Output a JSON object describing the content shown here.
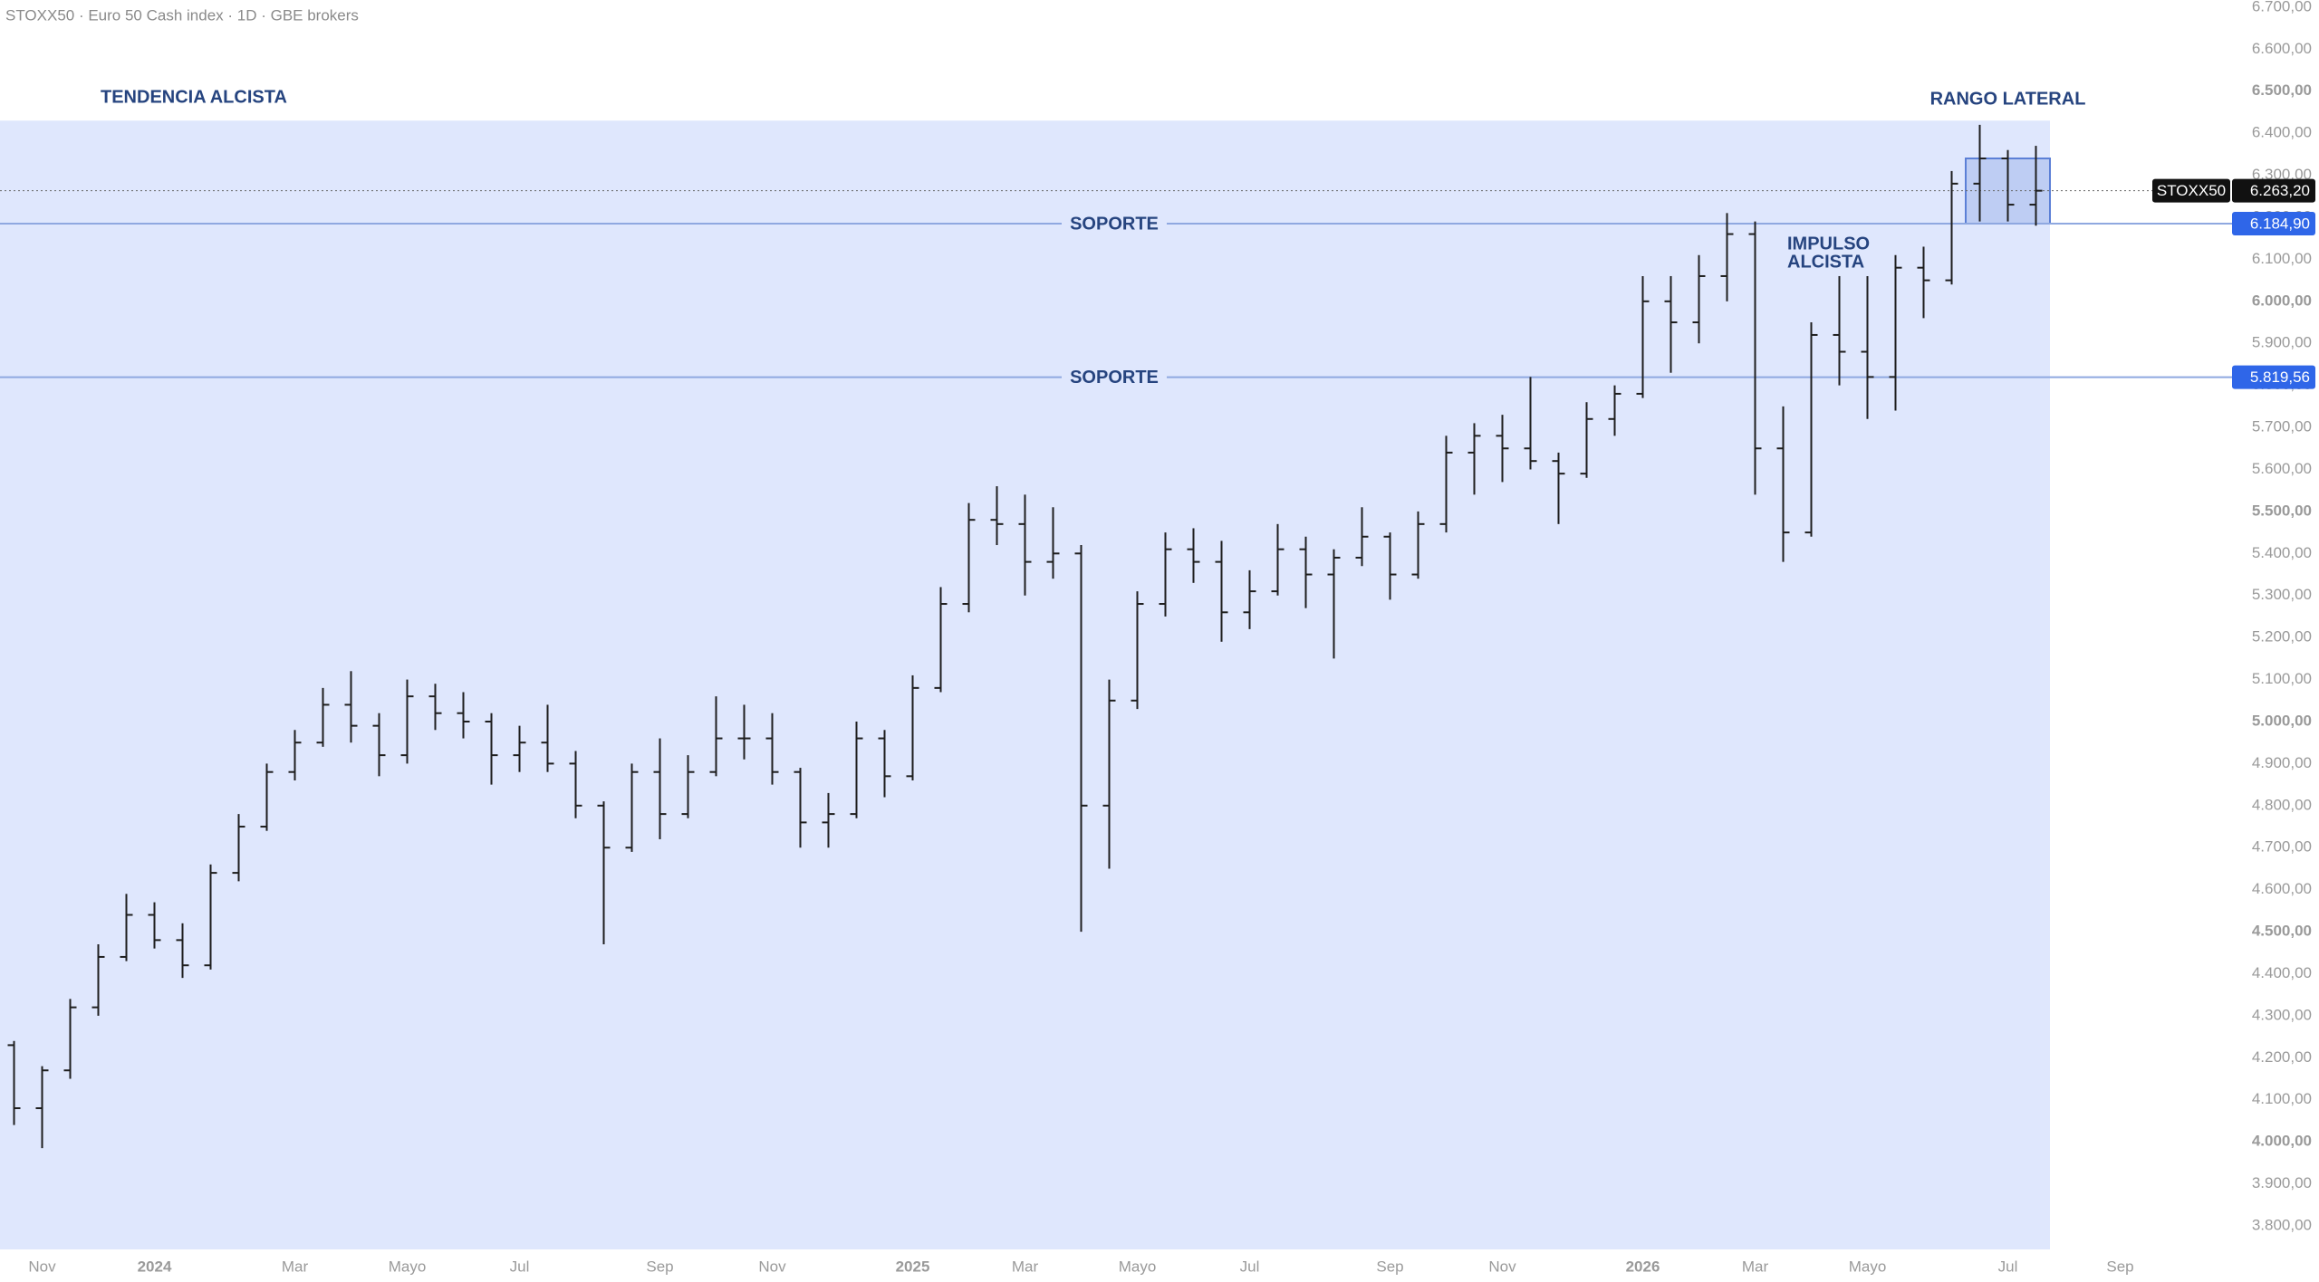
{
  "header": "STOXX50 · Euro 50 Cash index · 1D · GBE brokers",
  "chart_data": {
    "type": "ohlc",
    "categories": [
      null,
      "Nov",
      null,
      null,
      null,
      "2024",
      null,
      null,
      null,
      null,
      "Mar",
      null,
      null,
      null,
      "Mayo",
      null,
      null,
      null,
      "Jul",
      null,
      null,
      null,
      null,
      "Sep",
      null,
      null,
      null,
      "Nov",
      null,
      null,
      null,
      null,
      "2025",
      null,
      null,
      null,
      "Mar",
      null,
      null,
      null,
      "Mayo",
      null,
      null,
      null,
      "Jul",
      null,
      null,
      null,
      null,
      "Sep",
      null,
      null,
      null,
      "Nov",
      null,
      null,
      null,
      null,
      "2026",
      null,
      null,
      null,
      "Mar",
      null,
      null,
      null,
      "Mayo",
      null,
      null,
      null,
      null,
      "Jul",
      null,
      null,
      null,
      "Sep",
      null
    ],
    "ohlc": [
      [
        4230,
        4240,
        4040,
        4080
      ],
      [
        4080,
        4180,
        3985,
        4170
      ],
      [
        4170,
        4340,
        4150,
        4320
      ],
      [
        4320,
        4470,
        4300,
        4440
      ],
      [
        4440,
        4590,
        4430,
        4540
      ],
      [
        4540,
        4570,
        4460,
        4480
      ],
      [
        4480,
        4520,
        4390,
        4420
      ],
      [
        4420,
        4660,
        4410,
        4640
      ],
      [
        4640,
        4780,
        4620,
        4750
      ],
      [
        4750,
        4900,
        4740,
        4880
      ],
      [
        4880,
        4980,
        4860,
        4950
      ],
      [
        4950,
        5080,
        4940,
        5040
      ],
      [
        5040,
        5120,
        4950,
        4990
      ],
      [
        4990,
        5020,
        4870,
        4920
      ],
      [
        4920,
        5100,
        4900,
        5060
      ],
      [
        5060,
        5090,
        4980,
        5020
      ],
      [
        5020,
        5070,
        4960,
        5000
      ],
      [
        5000,
        5020,
        4850,
        4920
      ],
      [
        4920,
        4990,
        4880,
        4950
      ],
      [
        4950,
        5040,
        4880,
        4900
      ],
      [
        4900,
        4930,
        4770,
        4800
      ],
      [
        4800,
        4810,
        4470,
        4700
      ],
      [
        4700,
        4900,
        4690,
        4880
      ],
      [
        4880,
        4960,
        4720,
        4780
      ],
      [
        4780,
        4920,
        4770,
        4880
      ],
      [
        4880,
        5060,
        4870,
        4960
      ],
      [
        4960,
        5040,
        4910,
        4960
      ],
      [
        4960,
        5020,
        4850,
        4880
      ],
      [
        4880,
        4890,
        4700,
        4760
      ],
      [
        4760,
        4830,
        4700,
        4780
      ],
      [
        4780,
        5000,
        4770,
        4960
      ],
      [
        4960,
        4980,
        4820,
        4870
      ],
      [
        4870,
        5110,
        4860,
        5080
      ],
      [
        5080,
        5320,
        5070,
        5280
      ],
      [
        5280,
        5520,
        5260,
        5480
      ],
      [
        5480,
        5560,
        5420,
        5470
      ],
      [
        5470,
        5540,
        5300,
        5380
      ],
      [
        5380,
        5510,
        5340,
        5400
      ],
      [
        5400,
        5420,
        4500,
        4800
      ],
      [
        4800,
        5100,
        4650,
        5050
      ],
      [
        5050,
        5310,
        5030,
        5280
      ],
      [
        5280,
        5450,
        5250,
        5410
      ],
      [
        5410,
        5460,
        5330,
        5380
      ],
      [
        5380,
        5430,
        5190,
        5260
      ],
      [
        5260,
        5360,
        5220,
        5310
      ],
      [
        5310,
        5470,
        5300,
        5410
      ],
      [
        5410,
        5440,
        5270,
        5350
      ],
      [
        5350,
        5410,
        5150,
        5390
      ],
      [
        5390,
        5510,
        5370,
        5440
      ],
      [
        5440,
        5450,
        5290,
        5350
      ],
      [
        5350,
        5500,
        5340,
        5470
      ],
      [
        5470,
        5680,
        5450,
        5640
      ],
      [
        5640,
        5710,
        5540,
        5680
      ],
      [
        5680,
        5730,
        5570,
        5650
      ],
      [
        5650,
        5820,
        5600,
        5620
      ],
      [
        5620,
        5640,
        5470,
        5590
      ],
      [
        5590,
        5760,
        5580,
        5720
      ],
      [
        5720,
        5800,
        5680,
        5780
      ],
      [
        5780,
        6060,
        5770,
        6000
      ],
      [
        6000,
        6060,
        5830,
        5950
      ],
      [
        5950,
        6110,
        5900,
        6060
      ],
      [
        6060,
        6210,
        6000,
        6160
      ],
      [
        6160,
        6190,
        5540,
        5650
      ],
      [
        5650,
        5750,
        5380,
        5450
      ],
      [
        5450,
        5950,
        5440,
        5920
      ],
      [
        5920,
        6060,
        5800,
        5880
      ],
      [
        5880,
        6060,
        5720,
        5820
      ],
      [
        5820,
        6110,
        5740,
        6080
      ],
      [
        6080,
        6130,
        5960,
        6050
      ],
      [
        6050,
        6310,
        6040,
        6280
      ],
      [
        6280,
        6420,
        6190,
        6340
      ],
      [
        6340,
        6360,
        6190,
        6230
      ],
      [
        6230,
        6370,
        6180,
        6263.2
      ],
      null,
      null,
      null,
      null
    ],
    "color": "#1e1e1e",
    "ylim": [
      3744,
      6717
    ],
    "yticks": [
      {
        "value": 3800,
        "label": "3.800,00"
      },
      {
        "value": 3900,
        "label": "3.900,00"
      },
      {
        "value": 4000,
        "label": "4.000,00"
      },
      {
        "value": 4100,
        "label": "4.100,00"
      },
      {
        "value": 4200,
        "label": "4.200,00"
      },
      {
        "value": 4300,
        "label": "4.300,00"
      },
      {
        "value": 4400,
        "label": "4.400,00"
      },
      {
        "value": 4500,
        "label": "4.500,00"
      },
      {
        "value": 4600,
        "label": "4.600,00"
      },
      {
        "value": 4700,
        "label": "4.700,00"
      },
      {
        "value": 4800,
        "label": "4.800,00"
      },
      {
        "value": 4900,
        "label": "4.900,00"
      },
      {
        "value": 5000,
        "label": "5.000,00"
      },
      {
        "value": 5100,
        "label": "5.100,00"
      },
      {
        "value": 5200,
        "label": "5.200,00"
      },
      {
        "value": 5300,
        "label": "5.300,00"
      },
      {
        "value": 5400,
        "label": "5.400,00"
      },
      {
        "value": 5500,
        "label": "5.500,00"
      },
      {
        "value": 5600,
        "label": "5.600,00"
      },
      {
        "value": 5700,
        "label": "5.700,00"
      },
      {
        "value": 5800,
        "label": "5.800,00"
      },
      {
        "value": 5900,
        "label": "5.900,00"
      },
      {
        "value": 6000,
        "label": "6.000,00"
      },
      {
        "value": 6100,
        "label": "6.100,00"
      },
      {
        "value": 6200,
        "label": "6.200,00"
      },
      {
        "value": 6300,
        "label": "6.300,00"
      },
      {
        "value": 6400,
        "label": "6.400,00"
      },
      {
        "value": 6500,
        "label": "6.500,00"
      },
      {
        "value": 6600,
        "label": "6.600,00"
      },
      {
        "value": 6700,
        "label": "6.700,00"
      }
    ],
    "trend_zone": {
      "label": "TENDENCIA ALCISTA",
      "from": 0,
      "to": 72,
      "high": 6430,
      "color": "#dfe7fd"
    },
    "range_box": {
      "label": "RANGO LATERAL",
      "from": 70,
      "to": 72,
      "low": 6184.9,
      "high": 6340,
      "color": "#5b7fd6"
    },
    "impulse": [
      "IMPULSO",
      "ALCISTA"
    ],
    "levels": [
      {
        "label": "SOPORTE",
        "value": 6184.9,
        "value_label": "6.184,90"
      },
      {
        "label": "SOPORTE",
        "value": 5819.56,
        "value_label": "5.819,56"
      }
    ],
    "level_color": "#8fa8e0",
    "label_color": "#2f66e8",
    "last_price": {
      "name": "STOXX50",
      "value": 6263.2,
      "value_label": "6.263,20"
    }
  }
}
